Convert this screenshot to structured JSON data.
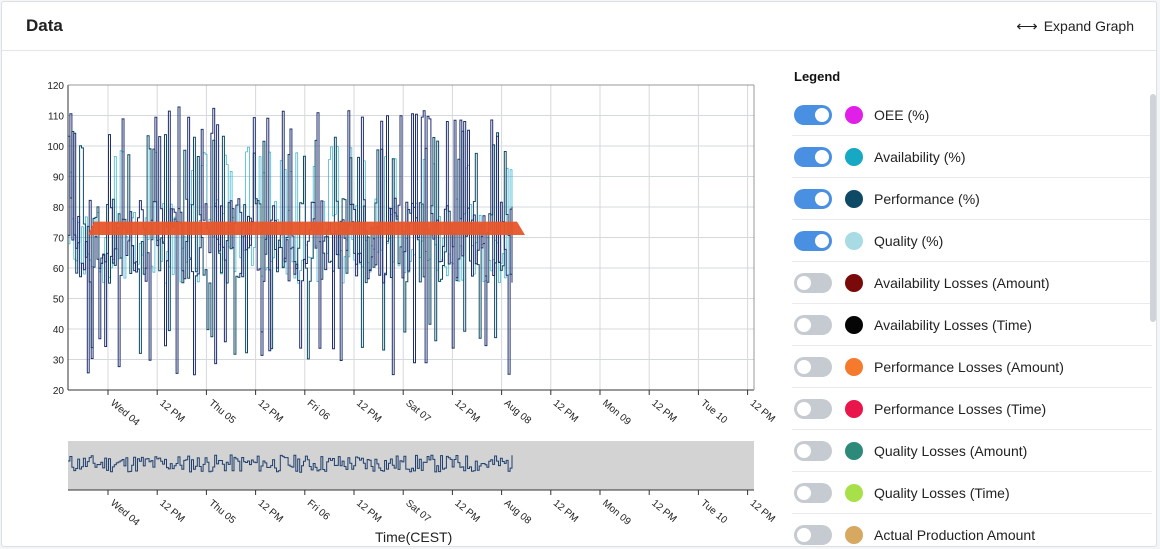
{
  "header": {
    "title": "Data",
    "expand_label": "Expand Graph",
    "expand_icon": "left-right-arrow-icon"
  },
  "legend": {
    "title": "Legend",
    "items": [
      {
        "label": "OEE (%)",
        "color": "#e020e8",
        "enabled": true
      },
      {
        "label": "Availability (%)",
        "color": "#17a8c4",
        "enabled": true
      },
      {
        "label": "Performance (%)",
        "color": "#0e4a66",
        "enabled": true
      },
      {
        "label": "Quality (%)",
        "color": "#a8dbe3",
        "enabled": true
      },
      {
        "label": "Availability Losses (Amount)",
        "color": "#7a0a0a",
        "enabled": false
      },
      {
        "label": "Availability Losses (Time)",
        "color": "#050505",
        "enabled": false
      },
      {
        "label": "Performance Losses (Amount)",
        "color": "#f57a2e",
        "enabled": false
      },
      {
        "label": "Performance Losses (Time)",
        "color": "#e8164a",
        "enabled": false
      },
      {
        "label": "Quality Losses (Amount)",
        "color": "#2d8a7a",
        "enabled": false
      },
      {
        "label": "Quality Losses (Time)",
        "color": "#a8e04a",
        "enabled": false
      },
      {
        "label": "Actual Production Amount",
        "color": "#d6a860",
        "enabled": false
      }
    ]
  },
  "chart_data": {
    "type": "line",
    "ylim": [
      20,
      120
    ],
    "yticks": [
      20,
      30,
      40,
      50,
      60,
      70,
      80,
      90,
      100,
      110,
      120
    ],
    "xtick_labels": [
      "Wed 04",
      "12 PM",
      "Thu 05",
      "12 PM",
      "Fri 06",
      "12 PM",
      "Sat 07",
      "12 PM",
      "Aug 08",
      "12 PM",
      "Mon 09",
      "12 PM",
      "Tue 10",
      "12 PM"
    ],
    "xlabel": "Time(CEST)",
    "band": {
      "value": 73,
      "color": "#e8562a"
    },
    "series_colors": [
      "#1f2f6e",
      "#0e4a66",
      "#17a8c4"
    ],
    "navigator_color": "#d3d3d3"
  }
}
